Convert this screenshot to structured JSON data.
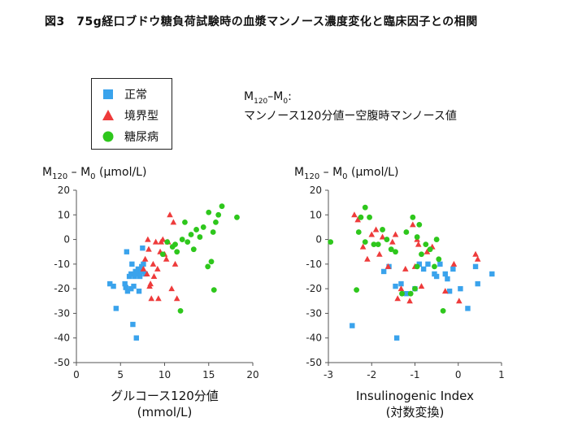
{
  "title": "図3　75g経口ブドウ糖負荷試験時の血漿マンノース濃度変化と臨床因子との相関",
  "legend": [
    {
      "label": "正常",
      "marker": "square",
      "color": "#3aa3ec"
    },
    {
      "label": "境界型",
      "marker": "triangle",
      "color": "#ee3b3b"
    },
    {
      "label": "糖尿病",
      "marker": "circle",
      "color": "#2ec71c"
    }
  ],
  "note": {
    "m": "M",
    "sub120": "120",
    "dash": "–M",
    "sub0": "0",
    "colon": ":",
    "line2": "マンノース120分値ー空腹時マンノース値"
  },
  "chart_data": [
    {
      "type": "scatter",
      "ylabel": {
        "m": "M",
        "sub120": "120",
        "mid": " – M",
        "sub0": "0",
        "unit": " (μmol/L)"
      },
      "xlabel": [
        "グルコース120分値",
        "(mmol/L)"
      ],
      "xlim": [
        0,
        20
      ],
      "ylim": [
        -50,
        20
      ],
      "xticks": [
        0,
        5,
        10,
        15,
        20
      ],
      "yticks": [
        20,
        10,
        0,
        -10,
        -20,
        -30,
        -40,
        -50
      ],
      "grid": false,
      "series": [
        {
          "name": "正常",
          "marker": "square",
          "color": "#3aa3ec",
          "points": [
            [
              3.8,
              -18
            ],
            [
              4.2,
              -19
            ],
            [
              4.5,
              -28
            ],
            [
              5.5,
              -18
            ],
            [
              5.6,
              -19.5
            ],
            [
              5.7,
              -5
            ],
            [
              5.8,
              -21
            ],
            [
              6.0,
              -15
            ],
            [
              6.2,
              -20
            ],
            [
              6.2,
              -14
            ],
            [
              6.3,
              -10
            ],
            [
              6.4,
              -34.5
            ],
            [
              6.5,
              -19
            ],
            [
              6.6,
              -15
            ],
            [
              6.7,
              -13
            ],
            [
              6.8,
              -40
            ],
            [
              6.9,
              -14
            ],
            [
              7.0,
              -12
            ],
            [
              7.1,
              -21
            ],
            [
              7.2,
              -15
            ],
            [
              7.3,
              -13
            ],
            [
              7.4,
              -11
            ],
            [
              7.5,
              -3.5
            ],
            [
              7.6,
              -10
            ],
            [
              7.8,
              -14
            ]
          ]
        },
        {
          "name": "境界型",
          "marker": "triangle",
          "color": "#ee3b3b",
          "points": [
            [
              7.6,
              -12
            ],
            [
              7.8,
              -8
            ],
            [
              8.0,
              -14
            ],
            [
              8.2,
              -4
            ],
            [
              8.3,
              -19
            ],
            [
              8.4,
              -18
            ],
            [
              8.5,
              -24
            ],
            [
              8.7,
              -10
            ],
            [
              8.8,
              -15
            ],
            [
              9.0,
              -1
            ],
            [
              9.2,
              -12
            ],
            [
              9.3,
              -24
            ],
            [
              9.5,
              -5
            ],
            [
              9.8,
              0
            ],
            [
              10.0,
              -6
            ],
            [
              10.2,
              -8
            ],
            [
              10.4,
              -1
            ],
            [
              10.6,
              10
            ],
            [
              10.8,
              -20
            ],
            [
              11.0,
              7
            ],
            [
              11.2,
              -10
            ],
            [
              11.4,
              -24
            ],
            [
              9.6,
              -1
            ],
            [
              8.1,
              0
            ]
          ]
        },
        {
          "name": "糖尿病",
          "marker": "circle",
          "color": "#2ec71c",
          "points": [
            [
              9.8,
              -6
            ],
            [
              10.3,
              -1
            ],
            [
              10.9,
              -3
            ],
            [
              11.2,
              -2
            ],
            [
              11.4,
              -5
            ],
            [
              11.8,
              -29
            ],
            [
              12.0,
              0
            ],
            [
              12.3,
              7
            ],
            [
              12.6,
              -1
            ],
            [
              13.0,
              2
            ],
            [
              13.3,
              -4
            ],
            [
              13.6,
              4
            ],
            [
              14.0,
              1
            ],
            [
              14.4,
              5
            ],
            [
              14.9,
              -11
            ],
            [
              15.0,
              11
            ],
            [
              15.3,
              -9
            ],
            [
              15.5,
              3
            ],
            [
              15.6,
              -20.5
            ],
            [
              15.8,
              7
            ],
            [
              16.1,
              10
            ],
            [
              16.5,
              13.5
            ],
            [
              18.2,
              9
            ]
          ]
        }
      ]
    },
    {
      "type": "scatter",
      "ylabel": {
        "m": "M",
        "sub120": "120",
        "mid": " – M",
        "sub0": "0",
        "unit": " (μmol/L)"
      },
      "xlabel": [
        "Insulinogenic Index",
        "(対数変換)"
      ],
      "xlim": [
        -3,
        1
      ],
      "ylim": [
        -50,
        20
      ],
      "xticks": [
        -3,
        -2,
        -1,
        0,
        1
      ],
      "yticks": [
        20,
        10,
        0,
        -10,
        -20,
        -30,
        -40,
        -50
      ],
      "grid": false,
      "series": [
        {
          "name": "正常",
          "marker": "square",
          "color": "#3aa3ec",
          "points": [
            [
              -2.45,
              -35
            ],
            [
              -1.72,
              -13
            ],
            [
              -1.6,
              -11
            ],
            [
              -1.42,
              -40
            ],
            [
              -1.45,
              -19
            ],
            [
              -1.32,
              -18
            ],
            [
              -1.2,
              -22
            ],
            [
              -1.0,
              -20
            ],
            [
              -0.9,
              -10
            ],
            [
              -0.8,
              -12
            ],
            [
              -0.7,
              -10
            ],
            [
              -0.55,
              -14
            ],
            [
              -0.42,
              -10
            ],
            [
              -0.25,
              -16
            ],
            [
              -0.2,
              -21
            ],
            [
              -0.12,
              -12
            ],
            [
              0.05,
              -20
            ],
            [
              0.22,
              -28
            ],
            [
              0.45,
              -18
            ],
            [
              0.4,
              -11
            ],
            [
              0.78,
              -14
            ],
            [
              -0.5,
              -15
            ],
            [
              -0.3,
              -14
            ]
          ]
        },
        {
          "name": "境界型",
          "marker": "triangle",
          "color": "#ee3b3b",
          "points": [
            [
              -2.4,
              10
            ],
            [
              -2.32,
              8
            ],
            [
              -2.2,
              -3
            ],
            [
              -2.1,
              -8
            ],
            [
              -2.0,
              2
            ],
            [
              -1.9,
              4
            ],
            [
              -1.82,
              -6
            ],
            [
              -1.75,
              1
            ],
            [
              -1.62,
              -11
            ],
            [
              -1.52,
              -1
            ],
            [
              -1.4,
              -24
            ],
            [
              -1.32,
              -20
            ],
            [
              -1.22,
              -12
            ],
            [
              -1.12,
              -25
            ],
            [
              -1.0,
              -11
            ],
            [
              -0.95,
              0
            ],
            [
              -0.92,
              -2
            ],
            [
              -0.85,
              -19
            ],
            [
              -0.72,
              -5
            ],
            [
              -0.6,
              -3
            ],
            [
              -0.3,
              -21
            ],
            [
              -0.1,
              -10
            ],
            [
              0.02,
              -25
            ],
            [
              0.4,
              -6
            ],
            [
              0.45,
              -8
            ],
            [
              -1.45,
              2
            ],
            [
              -1.05,
              6
            ]
          ]
        },
        {
          "name": "糖尿病",
          "marker": "circle",
          "color": "#2ec71c",
          "points": [
            [
              -2.95,
              -1
            ],
            [
              -2.35,
              -20.5
            ],
            [
              -2.3,
              3
            ],
            [
              -2.25,
              9
            ],
            [
              -2.15,
              -1
            ],
            [
              -2.15,
              13
            ],
            [
              -2.05,
              9
            ],
            [
              -1.95,
              -2
            ],
            [
              -1.85,
              -2
            ],
            [
              -1.75,
              4
            ],
            [
              -1.65,
              0
            ],
            [
              -1.55,
              -4
            ],
            [
              -1.45,
              -5
            ],
            [
              -1.3,
              -22
            ],
            [
              -1.1,
              -22
            ],
            [
              -1.0,
              -20
            ],
            [
              -1.05,
              9
            ],
            [
              -0.95,
              -11
            ],
            [
              -0.85,
              -6
            ],
            [
              -0.75,
              -2
            ],
            [
              -0.65,
              -4
            ],
            [
              -0.55,
              -11
            ],
            [
              -0.5,
              0
            ],
            [
              -0.35,
              -29
            ],
            [
              -1.2,
              3
            ],
            [
              -0.9,
              6
            ],
            [
              -0.95,
              1
            ],
            [
              -0.45,
              -8
            ]
          ]
        }
      ]
    }
  ]
}
